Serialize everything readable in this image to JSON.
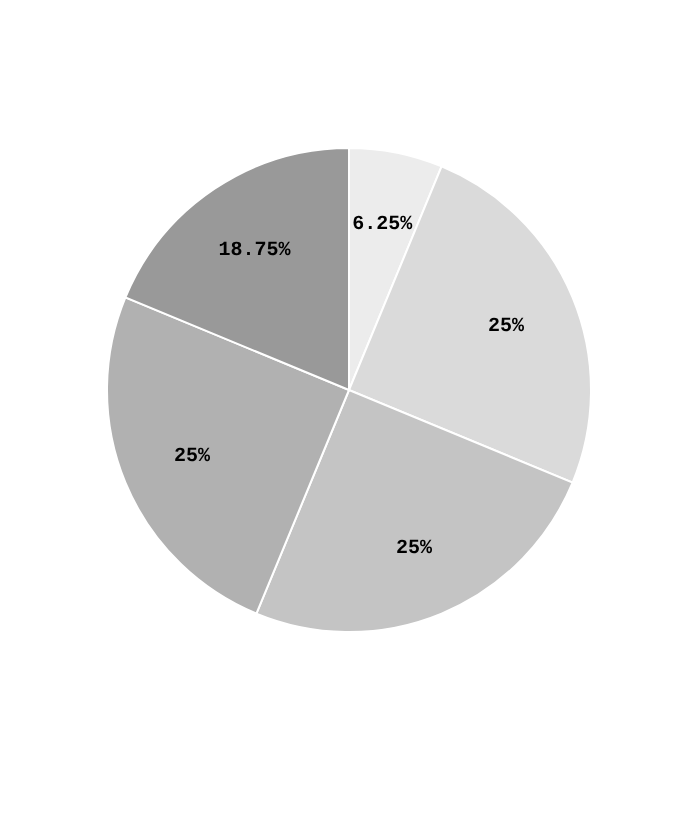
{
  "chart_data": {
    "type": "pie",
    "categories": [
      null,
      null,
      null,
      null,
      null
    ],
    "values": [
      6.25,
      25,
      25,
      25,
      18.75
    ],
    "colors": [
      "#ececec",
      "#dadada",
      "#c4c4c4",
      "#b1b1b1",
      "#999999"
    ],
    "value_labels": [
      "6.25%",
      "25%",
      "25%",
      "25%",
      "18.75%"
    ]
  }
}
